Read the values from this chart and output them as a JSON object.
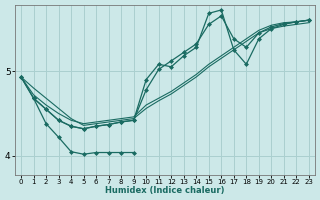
{
  "xlabel": "Humidex (Indice chaleur)",
  "background_color": "#cce8e8",
  "grid_color": "#aacfcf",
  "line_color": "#1a6b62",
  "x_min": -0.5,
  "x_max": 23.5,
  "y_min": 3.78,
  "y_max": 5.78,
  "yticks": [
    4,
    5
  ],
  "xticks": [
    0,
    1,
    2,
    3,
    4,
    5,
    6,
    7,
    8,
    9,
    10,
    11,
    12,
    13,
    14,
    15,
    16,
    17,
    18,
    19,
    20,
    21,
    22,
    23
  ],
  "series": [
    {
      "x": [
        0,
        1,
        2,
        3,
        4,
        5,
        6,
        7,
        8,
        9,
        10,
        11,
        12,
        13,
        14,
        15,
        16,
        17,
        18,
        19,
        20,
        21,
        22,
        23
      ],
      "y": [
        4.93,
        4.68,
        4.55,
        4.42,
        4.35,
        4.32,
        4.35,
        4.37,
        4.4,
        4.42,
        4.78,
        5.02,
        5.12,
        5.22,
        5.32,
        5.55,
        5.65,
        5.38,
        5.28,
        5.45,
        5.52,
        5.56,
        5.58,
        5.6
      ],
      "marker": "D",
      "markersize": 2.0,
      "linewidth": 0.9
    },
    {
      "x": [
        0,
        1,
        2,
        3,
        4,
        5,
        6,
        7,
        8,
        9,
        10,
        11,
        12,
        13,
        14,
        15,
        16,
        17,
        18,
        19,
        20,
        21,
        22,
        23
      ],
      "y": [
        4.93,
        4.68,
        4.55,
        4.42,
        4.35,
        4.32,
        4.35,
        4.37,
        4.4,
        4.42,
        4.9,
        5.08,
        5.05,
        5.18,
        5.28,
        5.68,
        5.72,
        5.25,
        5.08,
        5.38,
        5.5,
        5.55,
        5.58,
        5.6
      ],
      "marker": "D",
      "markersize": 2.0,
      "linewidth": 0.9
    },
    {
      "x": [
        0,
        1,
        2,
        3,
        4,
        5,
        6,
        7,
        8,
        9,
        10,
        11,
        12,
        13,
        14,
        15,
        16,
        17,
        18,
        19,
        20,
        21,
        22,
        23
      ],
      "y": [
        4.93,
        4.72,
        4.6,
        4.5,
        4.42,
        4.38,
        4.4,
        4.42,
        4.44,
        4.46,
        4.6,
        4.68,
        4.76,
        4.86,
        4.96,
        5.08,
        5.18,
        5.28,
        5.38,
        5.48,
        5.54,
        5.57,
        5.58,
        5.6
      ],
      "marker": null,
      "markersize": 0,
      "linewidth": 0.8
    },
    {
      "x": [
        1,
        2,
        3,
        4,
        5,
        6,
        7,
        8,
        9
      ],
      "y": [
        4.68,
        4.38,
        4.22,
        4.05,
        4.02,
        4.04,
        4.04,
        4.04,
        4.04
      ],
      "marker": "D",
      "markersize": 2.0,
      "linewidth": 0.9
    },
    {
      "x": [
        0,
        1,
        2,
        3,
        4,
        5,
        6,
        7,
        8,
        9,
        10,
        11,
        12,
        13,
        14,
        15,
        16,
        17,
        18,
        19,
        20,
        21,
        22,
        23
      ],
      "y": [
        4.93,
        4.8,
        4.68,
        4.56,
        4.44,
        4.36,
        4.38,
        4.4,
        4.42,
        4.44,
        4.56,
        4.65,
        4.73,
        4.83,
        4.93,
        5.05,
        5.15,
        5.25,
        5.35,
        5.45,
        5.5,
        5.53,
        5.55,
        5.57
      ],
      "marker": null,
      "markersize": 0,
      "linewidth": 0.8
    }
  ]
}
